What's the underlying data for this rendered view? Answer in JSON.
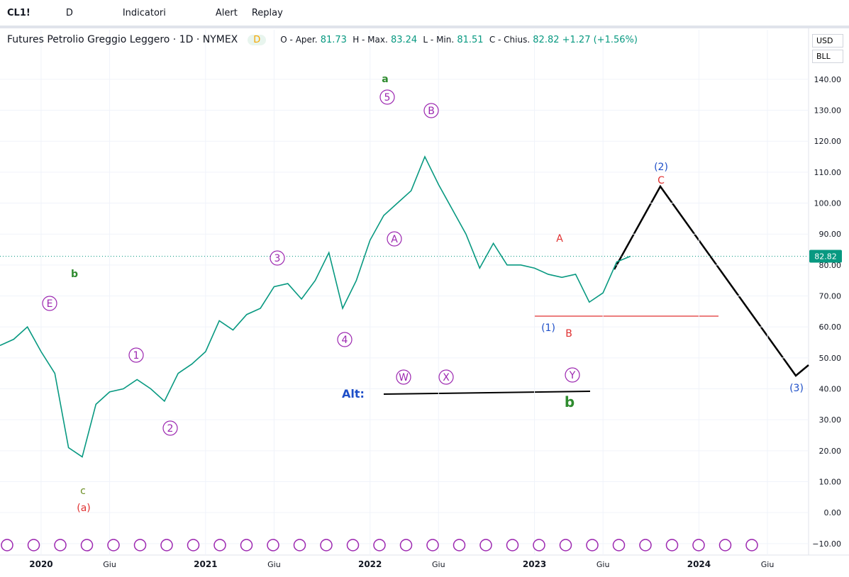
{
  "toolbar": {
    "symbol": "CL1!",
    "interval": "D",
    "indicators": "Indicatori",
    "alert": "Alert",
    "replay": "Replay"
  },
  "legend": {
    "name": "Futures Petrolio Greggio Leggero · 1D · NYMEX",
    "badge": "D",
    "open_label": "O - Aper.",
    "open": 81.73,
    "high_label": "H - Max.",
    "high": 83.24,
    "low_label": "L - Min.",
    "low": 81.51,
    "close_label": "C - Chius.",
    "close": 82.82,
    "change": "+1.27 (+1.56%)"
  },
  "currency": "USD",
  "unit": "BLL",
  "chart_data": {
    "type": "line",
    "x": [
      "2019-10",
      "2019-11",
      "2019-12",
      "2020-01",
      "2020-02",
      "2020-03",
      "2020-04",
      "2020-05",
      "2020-06",
      "2020-07",
      "2020-08",
      "2020-09",
      "2020-10",
      "2020-11",
      "2020-12",
      "2021-01",
      "2021-02",
      "2021-03",
      "2021-04",
      "2021-05",
      "2021-06",
      "2021-07",
      "2021-08",
      "2021-09",
      "2021-10",
      "2021-11",
      "2021-12",
      "2022-01",
      "2022-02",
      "2022-03",
      "2022-04",
      "2022-05",
      "2022-06",
      "2022-07",
      "2022-08",
      "2022-09",
      "2022-10",
      "2022-11",
      "2022-12",
      "2023-01",
      "2023-02",
      "2023-03",
      "2023-04",
      "2023-05",
      "2023-06",
      "2023-07",
      "2023-08"
    ],
    "series": [
      {
        "name": "CL1!",
        "color": "#089981",
        "values": [
          54,
          56,
          60,
          52,
          45,
          21,
          18,
          35,
          39,
          40,
          43,
          40,
          36,
          45,
          48,
          52,
          62,
          59,
          64,
          66,
          73,
          74,
          69,
          75,
          84,
          66,
          75,
          88,
          96,
          100,
          104,
          115,
          106,
          98,
          90,
          79,
          87,
          80,
          80,
          79,
          77,
          76,
          77,
          68,
          71,
          81,
          82.82
        ]
      }
    ],
    "last_price": 82.82,
    "xlim": [
      "2019-10",
      "2024-09"
    ],
    "xticks": [
      {
        "value": "2020-01",
        "label": "2020"
      },
      {
        "value": "2020-06",
        "label": "Giu"
      },
      {
        "value": "2021-01",
        "label": "2021"
      },
      {
        "value": "2021-06",
        "label": "Giu"
      },
      {
        "value": "2022-01",
        "label": "2022"
      },
      {
        "value": "2022-06",
        "label": "Giu"
      },
      {
        "value": "2023-01",
        "label": "2023"
      },
      {
        "value": "2023-06",
        "label": "Giu"
      },
      {
        "value": "2024-01",
        "label": "2024"
      },
      {
        "value": "2024-06",
        "label": "Giu"
      }
    ],
    "ylim": [
      -13.7,
      156
    ],
    "yticks": [
      {
        "value": -10,
        "label": "−10.00"
      },
      {
        "value": 0,
        "label": "0.00"
      },
      {
        "value": 10,
        "label": "10.00"
      },
      {
        "value": 20,
        "label": "20.00"
      },
      {
        "value": 30,
        "label": "30.00"
      },
      {
        "value": 40,
        "label": "40.00"
      },
      {
        "value": 50,
        "label": "50.00"
      },
      {
        "value": 60,
        "label": "60.00"
      },
      {
        "value": 70,
        "label": "70.00"
      },
      {
        "value": 80,
        "label": "80.00"
      },
      {
        "value": 90,
        "label": "90.00"
      },
      {
        "value": 100,
        "label": "100.00"
      },
      {
        "value": 110,
        "label": "110.00"
      },
      {
        "value": 120,
        "label": "120.00"
      },
      {
        "value": 130,
        "label": "130.00"
      },
      {
        "value": 140,
        "label": "140.00"
      }
    ],
    "grid": true,
    "annotations": [
      "a",
      "5",
      "B",
      "A",
      "3",
      "4",
      "1",
      "2",
      "E",
      "b",
      "c",
      "(a)",
      "(1)",
      "A",
      "B",
      "(2)",
      "C",
      "(3)",
      "W",
      "X",
      "Y",
      "Alt:",
      "b"
    ]
  }
}
